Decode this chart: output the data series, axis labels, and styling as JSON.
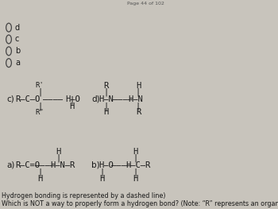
{
  "title_line1": "Which is NOT a way to properly form a hydrogen bond? (Note: “R” represents an organic side group.",
  "title_line2": "Hydrogen bonding is represented by a dashed line)",
  "bg_color": "#c8c4bc",
  "text_color": "#1a1a1a",
  "page_note": "Page 44 of 102",
  "fs_title": 5.8,
  "fs_body": 7.5,
  "fs_label": 7.5,
  "radio_options": [
    "a",
    "b",
    "c",
    "d"
  ]
}
